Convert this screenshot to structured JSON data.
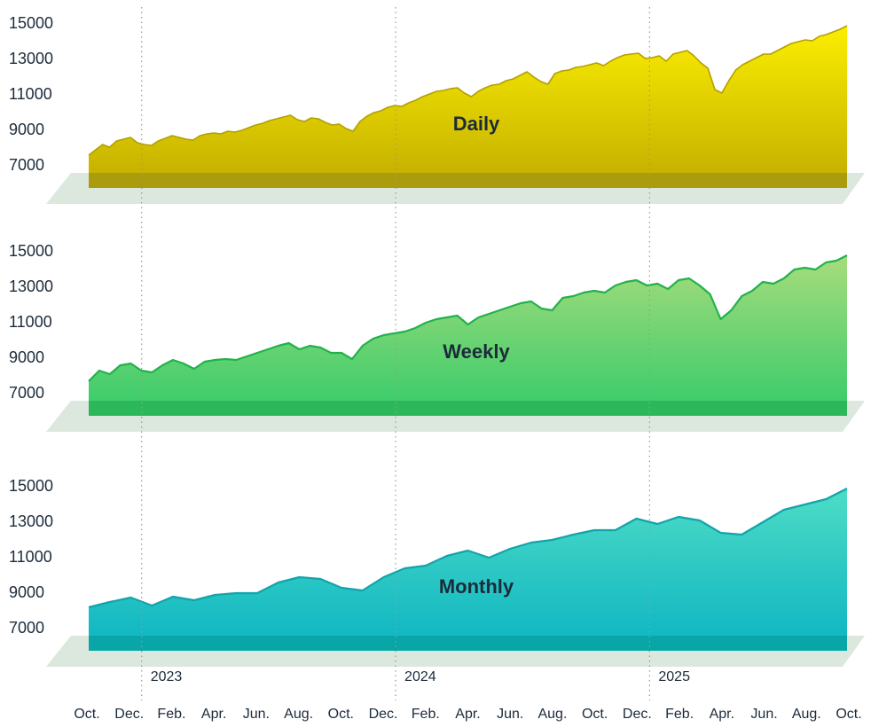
{
  "chart_data": [
    {
      "type": "area",
      "title": "Daily",
      "color": "#b39f00",
      "fill": [
        "#fbee00",
        "#c2ad00"
      ],
      "band_color": "#aa9c0c",
      "ylim": [
        5750,
        15750
      ],
      "yticks": [
        7000,
        9000,
        11000,
        13000,
        15000
      ],
      "values": [
        7600,
        7900,
        8200,
        8050,
        8400,
        8500,
        8600,
        8300,
        8200,
        8150,
        8400,
        8550,
        8700,
        8600,
        8500,
        8450,
        8700,
        8800,
        8850,
        8800,
        8950,
        8900,
        9000,
        9150,
        9300,
        9400,
        9550,
        9650,
        9750,
        9850,
        9600,
        9500,
        9700,
        9650,
        9450,
        9300,
        9350,
        9100,
        8950,
        9500,
        9800,
        10000,
        10100,
        10300,
        10400,
        10350,
        10550,
        10700,
        10900,
        11050,
        11200,
        11250,
        11350,
        11400,
        11100,
        10900,
        11200,
        11400,
        11550,
        11600,
        11800,
        11900,
        12100,
        12300,
        12000,
        11750,
        11600,
        12200,
        12350,
        12400,
        12550,
        12600,
        12700,
        12800,
        12650,
        12900,
        13100,
        13250,
        13300,
        13350,
        13050,
        13100,
        13200,
        12900,
        13300,
        13400,
        13500,
        13200,
        12800,
        12500,
        11300,
        11100,
        11800,
        12400,
        12700,
        12900,
        13100,
        13300,
        13300,
        13500,
        13700,
        13900,
        14000,
        14100,
        14050,
        14300,
        14400,
        14550,
        14700,
        14900
      ]
    },
    {
      "type": "area",
      "title": "Weekly",
      "color": "#22b24c",
      "fill": [
        "#a8dc7c",
        "#34cb6a"
      ],
      "band_color": "#2cb85a",
      "ylim": [
        5750,
        15750
      ],
      "yticks": [
        7000,
        9000,
        11000,
        13000,
        15000
      ],
      "values": [
        7700,
        8300,
        8100,
        8600,
        8700,
        8300,
        8200,
        8600,
        8900,
        8700,
        8400,
        8800,
        8900,
        8950,
        8900,
        9100,
        9300,
        9500,
        9700,
        9850,
        9500,
        9700,
        9600,
        9300,
        9300,
        8950,
        9700,
        10100,
        10300,
        10400,
        10500,
        10700,
        11000,
        11200,
        11300,
        11400,
        10900,
        11300,
        11500,
        11700,
        11900,
        12100,
        12200,
        11800,
        11700,
        12400,
        12500,
        12700,
        12800,
        12700,
        13100,
        13300,
        13400,
        13100,
        13200,
        12900,
        13400,
        13500,
        13100,
        12600,
        11200,
        11700,
        12500,
        12800,
        13300,
        13200,
        13500,
        14000,
        14100,
        14000,
        14400,
        14500,
        14800
      ]
    },
    {
      "type": "area",
      "title": "Monthly",
      "color": "#12a4aa",
      "fill": [
        "#4edcc6",
        "#0cb4c2"
      ],
      "band_color": "#08a6a6",
      "ylim": [
        5750,
        15750
      ],
      "yticks": [
        7000,
        9000,
        11000,
        13000,
        15000
      ],
      "values": [
        8200,
        8500,
        8750,
        8300,
        8800,
        8600,
        8900,
        9000,
        9000,
        9600,
        9900,
        9800,
        9300,
        9150,
        9900,
        10400,
        10550,
        11100,
        11400,
        11000,
        11500,
        11850,
        12000,
        12300,
        12550,
        12550,
        13200,
        12900,
        13300,
        13100,
        12400,
        12300,
        13000,
        13700,
        14000,
        14300,
        14900
      ]
    }
  ],
  "x_axis": {
    "months": [
      "Oct.",
      "Dec.",
      "Feb.",
      "Apr.",
      "Jun.",
      "Aug.",
      "Oct.",
      "Dec.",
      "Feb.",
      "Apr.",
      "Jun.",
      "Aug.",
      "Oct.",
      "Dec.",
      "Feb.",
      "Apr.",
      "Jun.",
      "Aug.",
      "Oct."
    ],
    "years": [
      "2023",
      "2024",
      "2025"
    ],
    "platform_color": "#dce7de"
  }
}
